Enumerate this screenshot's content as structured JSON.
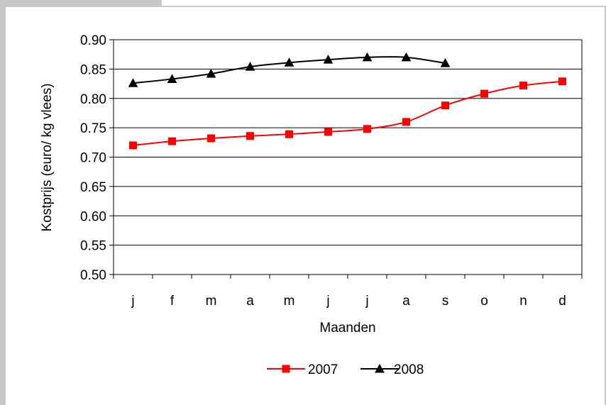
{
  "page": {
    "title_fragment": "",
    "border_color": "#c8c8c8"
  },
  "chart_data": {
    "type": "line",
    "title": "",
    "xlabel": "Maanden",
    "ylabel": "Kostprijs (euro/ kg vlees)",
    "categories": [
      "j",
      "f",
      "m",
      "a",
      "m",
      "j",
      "j",
      "a",
      "s",
      "o",
      "n",
      "d"
    ],
    "ylim": [
      0.5,
      0.9
    ],
    "yticks": [
      "0.50",
      "0.55",
      "0.60",
      "0.65",
      "0.70",
      "0.75",
      "0.80",
      "0.85",
      "0.90"
    ],
    "ytick_values": [
      0.5,
      0.55,
      0.6,
      0.65,
      0.7,
      0.75,
      0.8,
      0.85,
      0.9
    ],
    "grid": true,
    "legend_position": "bottom",
    "series": [
      {
        "name": "2007",
        "color": "#ff0000",
        "marker": "square",
        "values": [
          0.72,
          0.727,
          0.732,
          0.736,
          0.739,
          0.743,
          0.748,
          0.76,
          0.788,
          0.808,
          0.822,
          0.829
        ]
      },
      {
        "name": "2008",
        "color": "#000000",
        "marker": "triangle",
        "values": [
          0.826,
          0.833,
          0.842,
          0.854,
          0.861,
          0.866,
          0.87,
          0.87,
          0.86,
          null,
          null,
          null
        ]
      }
    ]
  }
}
